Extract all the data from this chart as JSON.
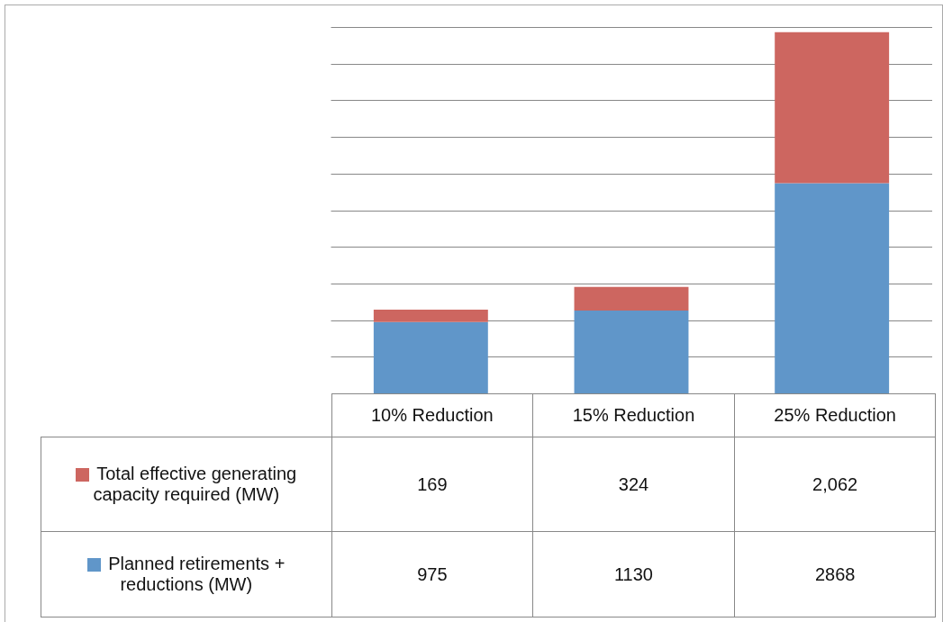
{
  "chart_data": {
    "type": "bar",
    "stacked": true,
    "categories": [
      "10% Reduction",
      "15% Reduction",
      "25% Reduction"
    ],
    "series": [
      {
        "name": "Planned retirements + reductions (MW)",
        "color": "#6096c9",
        "values": [
          975,
          1130,
          2868
        ],
        "value_labels": [
          "975",
          "1130",
          "2868"
        ]
      },
      {
        "name": "Total effective generating capacity required (MW)",
        "color": "#cd6660",
        "values": [
          169,
          324,
          2062
        ],
        "value_labels": [
          "169",
          "324",
          "2,062"
        ]
      }
    ],
    "grid": "y",
    "legend": "bottom"
  }
}
